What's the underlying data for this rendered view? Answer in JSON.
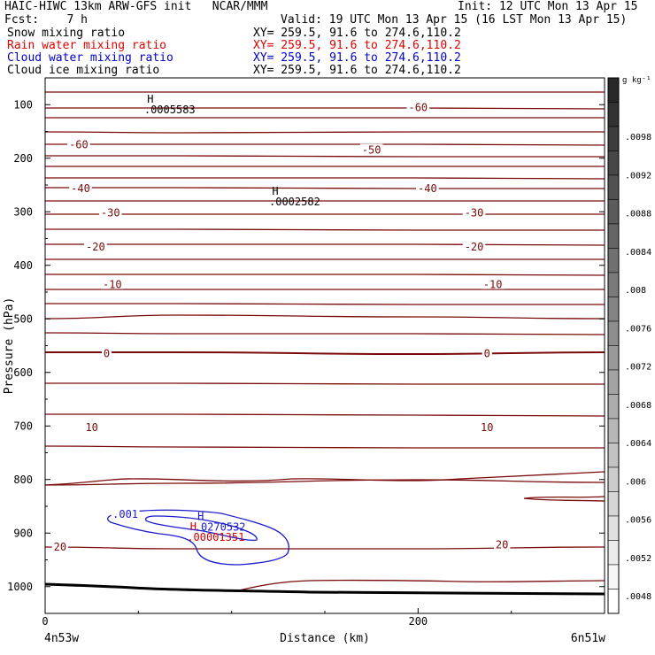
{
  "header": {
    "line1_left": "HAIC-HIWC 13km ARW-GFS init   NCAR/MMM",
    "line1_right": "Init: 12 UTC Mon 13 Apr 15",
    "line2_left": "Fcst:    7 h",
    "line2_right": "Valid: 19 UTC Mon 13 Apr 15 (16 LST Mon 13 Apr 15)",
    "fields": [
      {
        "name": "Snow mixing ratio",
        "xy": "XY= 259.5, 91.6 to 274.6,110.2",
        "color": "#000000"
      },
      {
        "name": "Rain water mixing ratio",
        "xy": "XY= 259.5, 91.6 to 274.6,110.2",
        "color": "#e00000"
      },
      {
        "name": "Cloud water mixing ratio",
        "xy": "XY= 259.5, 91.6 to 274.6,110.2",
        "color": "#0000cc"
      },
      {
        "name": "Cloud ice mixing ratio",
        "xy": "XY= 259.5, 91.6 to 274.6,110.2",
        "color": "#000000"
      }
    ]
  },
  "colors": {
    "temperature_contour": "#7a0a0a",
    "cloud_water_contour": "#1a1acc",
    "rain_label": "#d40000",
    "terrain": "#000000"
  },
  "chart_data": {
    "type": "line",
    "xlabel": "Distance (km)",
    "ylabel": "Pressure (hPa)",
    "xlim": [
      0,
      300
    ],
    "ylim": [
      1050,
      50
    ],
    "x_ticks": [
      0,
      200
    ],
    "y_ticks": [
      100,
      200,
      300,
      400,
      500,
      600,
      700,
      800,
      900,
      1000
    ],
    "endpoint_labels": {
      "left": "4n53w",
      "right": "6n51w"
    },
    "temperature_contour_labels": [
      {
        "x": 200,
        "p": 105,
        "text": "-60"
      },
      {
        "x": 18,
        "p": 175,
        "text": "-60"
      },
      {
        "x": 175,
        "p": 185,
        "text": "-50"
      },
      {
        "x": 19,
        "p": 257,
        "text": "-40"
      },
      {
        "x": 205,
        "p": 257,
        "text": "-40"
      },
      {
        "x": 35,
        "p": 302,
        "text": "-30"
      },
      {
        "x": 230,
        "p": 302,
        "text": "-30"
      },
      {
        "x": 27,
        "p": 366,
        "text": "-20"
      },
      {
        "x": 230,
        "p": 366,
        "text": "-20"
      },
      {
        "x": 36,
        "p": 436,
        "text": "-10"
      },
      {
        "x": 240,
        "p": 436,
        "text": "-10"
      },
      {
        "x": 33,
        "p": 565,
        "text": "0"
      },
      {
        "x": 237,
        "p": 565,
        "text": "0"
      },
      {
        "x": 25,
        "p": 703,
        "text": "10"
      },
      {
        "x": 237,
        "p": 703,
        "text": "10"
      },
      {
        "x": 8,
        "p": 926,
        "text": "20"
      },
      {
        "x": 245,
        "p": 922,
        "text": "20"
      }
    ],
    "cloud_water_contour_label": {
      "x": 43,
      "p": 865,
      "text": ".001"
    },
    "maxima": [
      {
        "field": "snow",
        "x": 55,
        "p": 98,
        "label": "H",
        "value": ".0005583"
      },
      {
        "field": "cloud_ice",
        "x": 122,
        "p": 270,
        "label": "H",
        "value": ".0002582"
      },
      {
        "field": "cloud_water",
        "x": 82,
        "p": 877,
        "label": "H",
        "value": ".0270532"
      },
      {
        "field": "rain_water",
        "x": 78,
        "p": 896,
        "label": "H",
        "value": ".00001351"
      }
    ],
    "colorbar": {
      "units": "g kg⁻¹",
      "tick_labels": [
        ".0098",
        ".0092",
        ".0088",
        ".0084",
        ".008",
        ".0076",
        ".0072",
        ".0068",
        ".0064",
        ".006",
        ".0056",
        ".0052",
        ".0048"
      ]
    }
  }
}
